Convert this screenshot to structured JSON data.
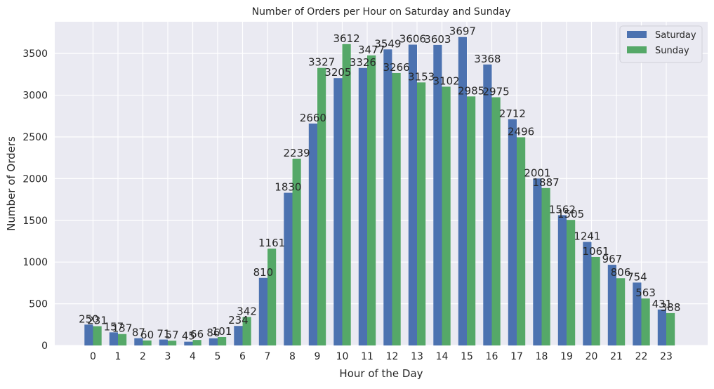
{
  "chart_data": {
    "type": "bar",
    "title": "Number of Orders per Hour on Saturday and Sunday",
    "xlabel": "Hour of the Day",
    "ylabel": "Number of Orders",
    "ylim": [
      0,
      3880
    ],
    "yticks": [
      0,
      500,
      1000,
      1500,
      2000,
      2500,
      3000,
      3500
    ],
    "grid": true,
    "legend_position": "top-right",
    "categories": [
      "0",
      "1",
      "2",
      "3",
      "4",
      "5",
      "6",
      "7",
      "8",
      "9",
      "10",
      "11",
      "12",
      "13",
      "14",
      "15",
      "16",
      "17",
      "18",
      "19",
      "20",
      "21",
      "22",
      "23"
    ],
    "series": [
      {
        "name": "Saturday",
        "color": "#4c72b0",
        "values": [
          250,
          157,
          87,
          71,
          45,
          86,
          234,
          810,
          1830,
          2660,
          3205,
          3326,
          3549,
          3606,
          3603,
          3697,
          3368,
          2712,
          2001,
          1562,
          1241,
          967,
          754,
          431
        ]
      },
      {
        "name": "Sunday",
        "color": "#55a868",
        "values": [
          231,
          137,
          60,
          57,
          66,
          101,
          342,
          1161,
          2239,
          3327,
          3612,
          3477,
          3266,
          3153,
          3102,
          2985,
          2975,
          2496,
          1887,
          1505,
          1061,
          806,
          563,
          388
        ]
      }
    ],
    "plot_background": "#eaeaf2",
    "grid_color": "#ffffff"
  }
}
